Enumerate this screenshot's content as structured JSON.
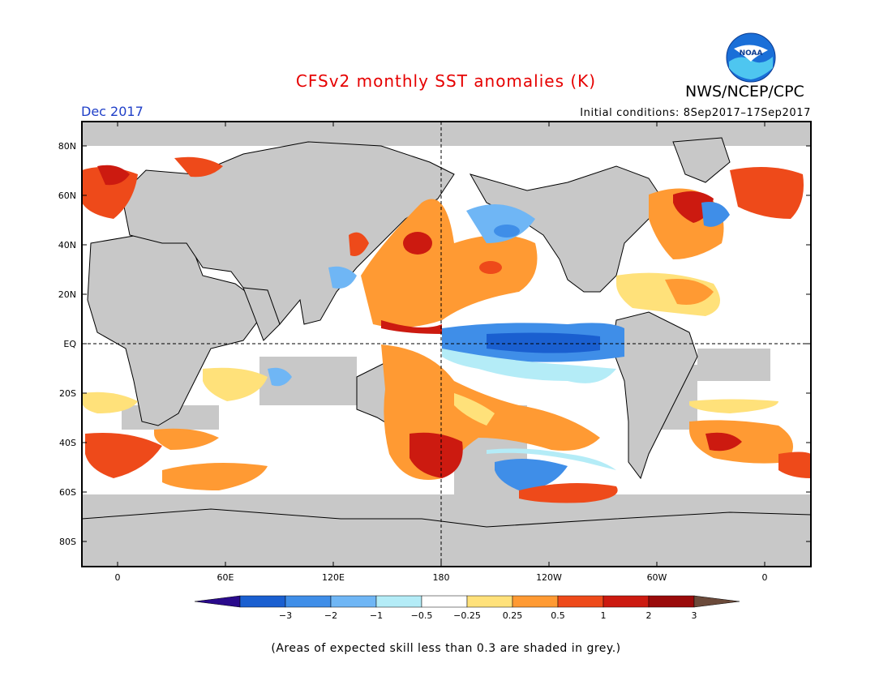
{
  "header": {
    "title": "CFSv2 monthly SST anomalies (K)",
    "agency": "NWS/NCEP/CPC",
    "logo_text": "NOAA",
    "date_label": "Dec 2017",
    "initial_conditions": "Initial conditions: 8Sep2017–17Sep2017"
  },
  "map": {
    "lat_labels": [
      "80N",
      "60N",
      "40N",
      "20N",
      "EQ",
      "20S",
      "40S",
      "60S",
      "80S"
    ],
    "lon_labels": [
      "0",
      "60E",
      "120E",
      "180",
      "120W",
      "60W",
      "0"
    ],
    "colors": {
      "land": "#c8c8c8",
      "skill_grey": "#c8c8c8",
      "ocean_neutral": "#ffffff"
    }
  },
  "colorbar": {
    "ticks": [
      "−3",
      "−2",
      "−1",
      "−0.5",
      "−0.25",
      "0.25",
      "0.5",
      "1",
      "2",
      "3"
    ],
    "colors": [
      "#2a0a8c",
      "#1a5fd0",
      "#3f8ee8",
      "#6fb6f5",
      "#b4ecf7",
      "#ffffff",
      "#ffe17a",
      "#ff9a33",
      "#ee4a1a",
      "#cc1a10",
      "#9a0a0a",
      "#6b4a3a"
    ]
  },
  "footer": {
    "note": "(Areas of expected skill less than 0.3 are shaded in grey.)"
  }
}
